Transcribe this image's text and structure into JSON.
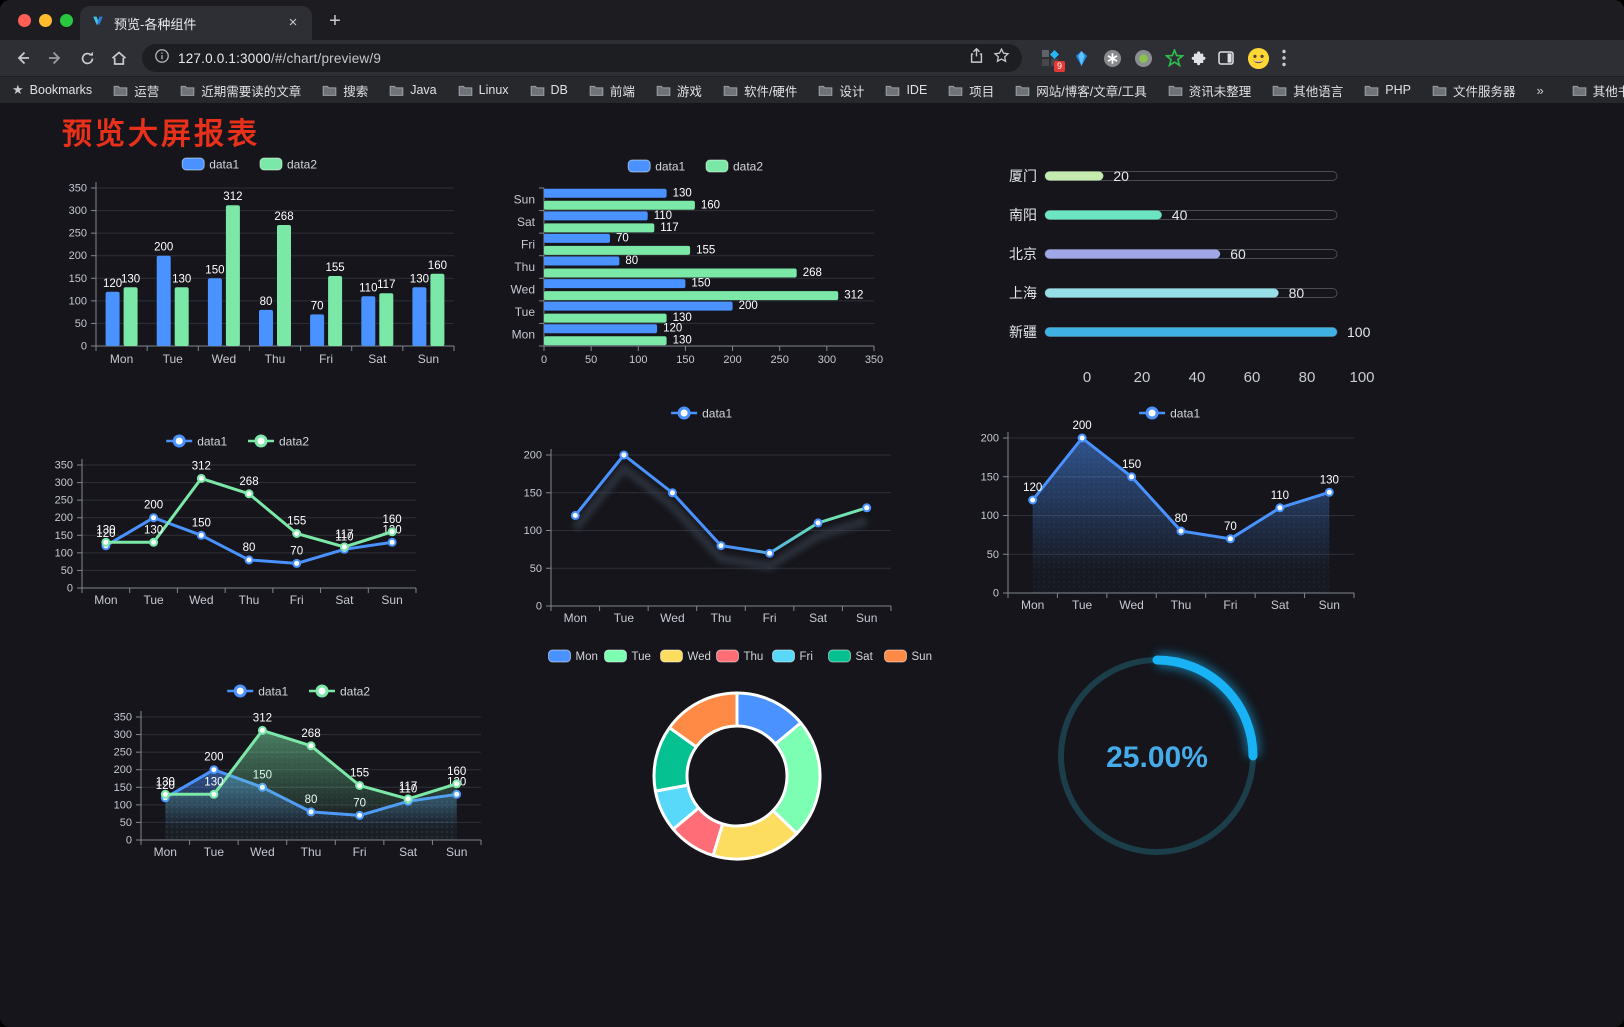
{
  "browser": {
    "window_controls": [
      "close",
      "minimize",
      "zoom"
    ],
    "tab": {
      "title": "预览-各种组件",
      "close_glyph": "×"
    },
    "new_tab_glyph": "+",
    "url": {
      "host": "127.0.0.1:3000",
      "path": "/#/chart/preview/9"
    },
    "extensions": [
      {
        "name": "proxy-grid",
        "badge": "9"
      },
      {
        "name": "blue-gem"
      },
      {
        "name": "asterisk-circle"
      },
      {
        "name": "green-dot-circle"
      },
      {
        "name": "green-star"
      }
    ]
  },
  "bookmarks": {
    "root_label": "Bookmarks",
    "items": [
      "运营",
      "近期需要读的文章",
      "搜索",
      "Java",
      "Linux",
      "DB",
      "前端",
      "游戏",
      "软件/硬件",
      "设计",
      "IDE",
      "项目",
      "网站/博客/文章/工具",
      "资讯未整理",
      "其他语言",
      "PHP",
      "文件服务器"
    ],
    "overflow_glyph": "»",
    "other_label": "其他书签"
  },
  "page": {
    "title": "预览大屏报表"
  },
  "chart_data": [
    {
      "id": "bar-grouped",
      "type": "bar",
      "title": "",
      "categories": [
        "Mon",
        "Tue",
        "Wed",
        "Thu",
        "Fri",
        "Sat",
        "Sun"
      ],
      "series": [
        {
          "name": "data1",
          "color": "#4992ff",
          "values": [
            120,
            200,
            150,
            80,
            70,
            110,
            130
          ]
        },
        {
          "name": "data2",
          "color": "#7ce8a8",
          "values": [
            130,
            130,
            312,
            268,
            155,
            117,
            160
          ]
        }
      ],
      "ylim": [
        0,
        350
      ],
      "yticks": [
        0,
        50,
        100,
        150,
        200,
        250,
        300,
        350
      ],
      "grid": true,
      "legend_position": "top",
      "labels": true
    },
    {
      "id": "bar-horizontal",
      "type": "bar-horizontal",
      "categories": [
        "Mon",
        "Tue",
        "Wed",
        "Thu",
        "Fri",
        "Sat",
        "Sun"
      ],
      "series": [
        {
          "name": "data1",
          "color": "#4992ff",
          "values": [
            120,
            200,
            150,
            80,
            70,
            110,
            130
          ]
        },
        {
          "name": "data2",
          "color": "#7ce8a8",
          "values": [
            130,
            130,
            312,
            268,
            155,
            117,
            160
          ]
        }
      ],
      "xlim": [
        0,
        350
      ],
      "xticks": [
        0,
        50,
        100,
        150,
        200,
        250,
        300,
        350
      ],
      "grid": true,
      "legend_position": "top",
      "labels": true
    },
    {
      "id": "progress-list",
      "type": "progress",
      "max": 100,
      "xticks": [
        0,
        20,
        40,
        60,
        80,
        100
      ],
      "items": [
        {
          "label": "厦门",
          "value": 20,
          "color": "#c4ebad"
        },
        {
          "label": "南阳",
          "value": 40,
          "color": "#6be6c1"
        },
        {
          "label": "北京",
          "value": 60,
          "color": "#a0a7e6"
        },
        {
          "label": "上海",
          "value": 80,
          "color": "#96dee8"
        },
        {
          "label": "新疆",
          "value": 100,
          "color": "#3fb1e3"
        }
      ]
    },
    {
      "id": "line-two",
      "type": "line",
      "categories": [
        "Mon",
        "Tue",
        "Wed",
        "Thu",
        "Fri",
        "Sat",
        "Sun"
      ],
      "series": [
        {
          "name": "data1",
          "color": "#4992ff",
          "values": [
            120,
            200,
            150,
            80,
            70,
            110,
            130
          ]
        },
        {
          "name": "data2",
          "color": "#7ce8a8",
          "values": [
            130,
            130,
            312,
            268,
            155,
            117,
            160
          ]
        }
      ],
      "ylim": [
        0,
        350
      ],
      "yticks": [
        0,
        50,
        100,
        150,
        200,
        250,
        300,
        350
      ],
      "grid": true,
      "legend_position": "top",
      "labels": true
    },
    {
      "id": "line-gradient",
      "type": "line",
      "categories": [
        "Mon",
        "Tue",
        "Wed",
        "Thu",
        "Fri",
        "Sat",
        "Sun"
      ],
      "series": [
        {
          "name": "data1",
          "color": "#4992ff",
          "gradient_to": "#7ce8a8",
          "shadow": true,
          "values": [
            120,
            200,
            150,
            80,
            70,
            110,
            130
          ]
        }
      ],
      "ylim": [
        0,
        200
      ],
      "yticks": [
        0,
        50,
        100,
        150,
        200
      ],
      "grid": true,
      "legend_position": "top",
      "labels": false
    },
    {
      "id": "line-area",
      "type": "line",
      "categories": [
        "Mon",
        "Tue",
        "Wed",
        "Thu",
        "Fri",
        "Sat",
        "Sun"
      ],
      "series": [
        {
          "name": "data1",
          "color": "#4992ff",
          "area": true,
          "values": [
            120,
            200,
            150,
            80,
            70,
            110,
            130
          ]
        }
      ],
      "ylim": [
        0,
        200
      ],
      "yticks": [
        0,
        50,
        100,
        150,
        200
      ],
      "grid": true,
      "legend_position": "top",
      "labels": true
    },
    {
      "id": "line-two-area",
      "type": "line",
      "categories": [
        "Mon",
        "Tue",
        "Wed",
        "Thu",
        "Fri",
        "Sat",
        "Sun"
      ],
      "series": [
        {
          "name": "data1",
          "color": "#4992ff",
          "area": true,
          "values": [
            120,
            200,
            150,
            80,
            70,
            110,
            130
          ]
        },
        {
          "name": "data2",
          "color": "#7ce8a8",
          "area": true,
          "values": [
            130,
            130,
            312,
            268,
            155,
            117,
            160
          ]
        }
      ],
      "ylim": [
        0,
        350
      ],
      "yticks": [
        0,
        50,
        100,
        150,
        200,
        250,
        300,
        350
      ],
      "grid": true,
      "legend_position": "top",
      "labels": true
    },
    {
      "id": "donut",
      "type": "pie",
      "inner_radius_ratio": 0.6,
      "legend_position": "top",
      "items": [
        {
          "label": "Mon",
          "value": 120,
          "color": "#4992ff"
        },
        {
          "label": "Tue",
          "value": 200,
          "color": "#7cffb2"
        },
        {
          "label": "Wed",
          "value": 150,
          "color": "#fddd60"
        },
        {
          "label": "Thu",
          "value": 80,
          "color": "#ff6e76"
        },
        {
          "label": "Fri",
          "value": 70,
          "color": "#58d9f9"
        },
        {
          "label": "Sat",
          "value": 110,
          "color": "#05c091"
        },
        {
          "label": "Sun",
          "value": 130,
          "color": "#ff8a45"
        }
      ]
    },
    {
      "id": "gauge",
      "type": "gauge",
      "value": 25,
      "label": "25.00%",
      "color": "#18b2f5",
      "track_color": "#1c3e4a",
      "text_color": "#46abe9"
    }
  ]
}
